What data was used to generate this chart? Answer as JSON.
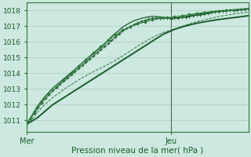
{
  "bg_color": "#cde8e0",
  "grid_color": "#aaccbb",
  "line_color_dark": "#1a5c2a",
  "line_color_mid": "#2d7a3a",
  "xlabel": "Pression niveau de la mer( hPa )",
  "xlim": [
    0,
    60
  ],
  "ylim": [
    1010.3,
    1018.5
  ],
  "yticks": [
    1011,
    1012,
    1013,
    1014,
    1015,
    1016,
    1017,
    1018
  ],
  "xtick_labels": [
    "Mer",
    "Jeu"
  ],
  "xtick_positions": [
    0,
    39
  ],
  "vline_x": 39,
  "smooth_line": [
    1010.8,
    1010.9,
    1011.05,
    1011.2,
    1011.4,
    1011.6,
    1011.8,
    1012.0,
    1012.15,
    1012.3,
    1012.45,
    1012.6,
    1012.75,
    1012.9,
    1013.05,
    1013.2,
    1013.35,
    1013.5,
    1013.65,
    1013.8,
    1013.95,
    1014.1,
    1014.25,
    1014.4,
    1014.55,
    1014.7,
    1014.85,
    1015.0,
    1015.15,
    1015.3,
    1015.45,
    1015.6,
    1015.75,
    1015.9,
    1016.05,
    1016.2,
    1016.35,
    1016.5,
    1016.6,
    1016.7,
    1016.8,
    1016.88,
    1016.95,
    1017.02,
    1017.08,
    1017.14,
    1017.19,
    1017.24,
    1017.28,
    1017.32,
    1017.36,
    1017.4,
    1017.43,
    1017.46,
    1017.49,
    1017.52,
    1017.55,
    1017.58,
    1017.61,
    1017.64,
    1017.67
  ],
  "plus_line_x": [
    0,
    1,
    2,
    3,
    4,
    5,
    6,
    7,
    8,
    9,
    10,
    11,
    12,
    13,
    14,
    15,
    16,
    17,
    18,
    19,
    20,
    21,
    22,
    23,
    24,
    25,
    26,
    27,
    28,
    29,
    30,
    31,
    32,
    33,
    34,
    35,
    36,
    37,
    38,
    39,
    40,
    41,
    42,
    43,
    44,
    45,
    46,
    47,
    48,
    49,
    50,
    51,
    52,
    53,
    54,
    55,
    56,
    57,
    58,
    59,
    60
  ],
  "plus_line": [
    1010.8,
    1011.1,
    1011.45,
    1011.8,
    1012.1,
    1012.4,
    1012.65,
    1012.9,
    1013.1,
    1013.3,
    1013.5,
    1013.7,
    1013.9,
    1014.1,
    1014.3,
    1014.5,
    1014.7,
    1014.9,
    1015.1,
    1015.3,
    1015.5,
    1015.7,
    1015.9,
    1016.1,
    1016.3,
    1016.5,
    1016.7,
    1016.85,
    1016.98,
    1017.1,
    1017.2,
    1017.3,
    1017.38,
    1017.45,
    1017.5,
    1017.52,
    1017.53,
    1017.52,
    1017.5,
    1017.48,
    1017.5,
    1017.52,
    1017.55,
    1017.58,
    1017.62,
    1017.66,
    1017.7,
    1017.74,
    1017.78,
    1017.82,
    1017.86,
    1017.9,
    1017.93,
    1017.96,
    1017.98,
    1018.0,
    1018.02,
    1018.04,
    1018.06,
    1018.08,
    1018.1
  ],
  "upper_line": [
    1010.8,
    1011.15,
    1011.55,
    1011.95,
    1012.25,
    1012.55,
    1012.8,
    1013.05,
    1013.25,
    1013.45,
    1013.65,
    1013.85,
    1014.05,
    1014.25,
    1014.45,
    1014.65,
    1014.85,
    1015.05,
    1015.25,
    1015.45,
    1015.65,
    1015.85,
    1016.1,
    1016.35,
    1016.55,
    1016.75,
    1016.95,
    1017.1,
    1017.23,
    1017.35,
    1017.43,
    1017.5,
    1017.56,
    1017.6,
    1017.63,
    1017.62,
    1017.6,
    1017.57,
    1017.55,
    1017.52,
    1017.53,
    1017.56,
    1017.59,
    1017.63,
    1017.67,
    1017.71,
    1017.75,
    1017.79,
    1017.83,
    1017.87,
    1017.91,
    1017.94,
    1017.97,
    1017.99,
    1018.01,
    1018.03,
    1018.05,
    1018.07,
    1018.09,
    1018.11,
    1018.13
  ],
  "lower_line": [
    1010.75,
    1011.0,
    1011.3,
    1011.6,
    1011.85,
    1012.1,
    1012.3,
    1012.5,
    1012.68,
    1012.85,
    1013.02,
    1013.18,
    1013.33,
    1013.48,
    1013.63,
    1013.77,
    1013.9,
    1014.03,
    1014.15,
    1014.27,
    1014.38,
    1014.5,
    1014.62,
    1014.75,
    1014.88,
    1015.02,
    1015.17,
    1015.32,
    1015.47,
    1015.62,
    1015.77,
    1015.92,
    1016.06,
    1016.2,
    1016.33,
    1016.45,
    1016.56,
    1016.66,
    1016.73,
    1016.8,
    1016.88,
    1016.96,
    1017.04,
    1017.12,
    1017.2,
    1017.27,
    1017.34,
    1017.4,
    1017.46,
    1017.52,
    1017.57,
    1017.62,
    1017.67,
    1017.71,
    1017.75,
    1017.79,
    1017.83,
    1017.86,
    1017.89,
    1017.92,
    1017.95
  ],
  "diamond_x": [
    0,
    2,
    4,
    6,
    8,
    10,
    12,
    14,
    16,
    18,
    20,
    22,
    24,
    26,
    28,
    30,
    32,
    34,
    36,
    38,
    40,
    42,
    44,
    46,
    48,
    50,
    52,
    54,
    56,
    58,
    60
  ],
  "diamond_vals": [
    1010.8,
    1011.55,
    1012.1,
    1012.65,
    1013.1,
    1013.55,
    1014.0,
    1014.45,
    1014.88,
    1015.3,
    1015.7,
    1016.1,
    1016.45,
    1016.75,
    1016.98,
    1017.15,
    1017.28,
    1017.4,
    1017.5,
    1017.55,
    1017.6,
    1017.67,
    1017.75,
    1017.82,
    1017.88,
    1017.93,
    1017.97,
    1018.0,
    1018.04,
    1018.08,
    1018.12
  ]
}
